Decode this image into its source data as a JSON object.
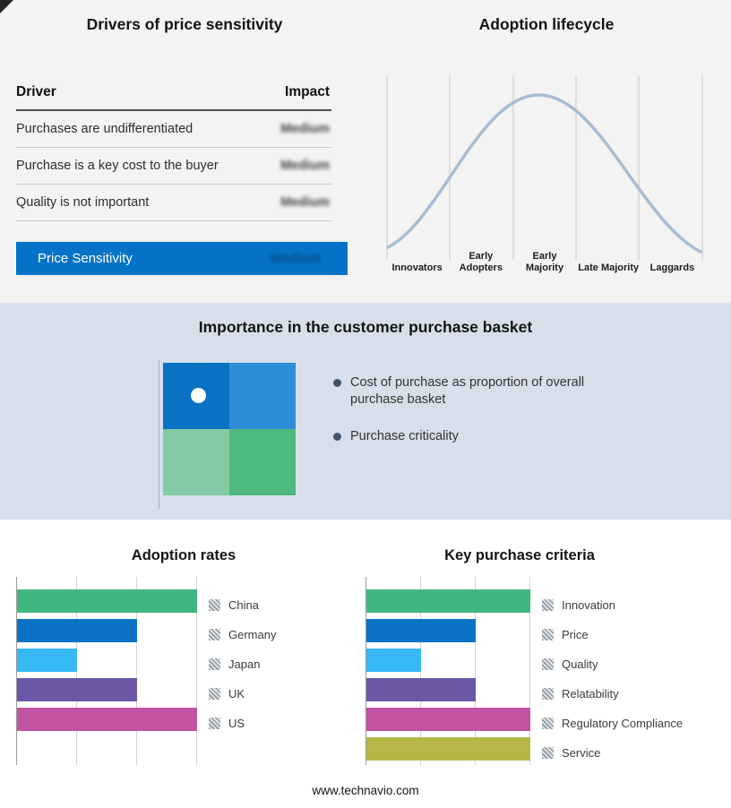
{
  "page": {
    "footer": "www.technavio.com"
  },
  "colors": {
    "accent_blue": "#0473c7",
    "band_background": "#d7e0ea",
    "curve": "#a8bdd3"
  },
  "price_sensitivity": {
    "title": "Drivers of price sensitivity",
    "columns": {
      "driver": "Driver",
      "impact": "Impact"
    },
    "rows": [
      {
        "driver": "Purchases are undifferentiated",
        "impact": "Medium"
      },
      {
        "driver": "Purchase is a key cost to the buyer",
        "impact": "Medium"
      },
      {
        "driver": "Quality is not important",
        "impact": "Medium"
      }
    ],
    "summary": {
      "label": "Price Sensitivity",
      "impact": "Medium"
    }
  },
  "adoption_lifecycle": {
    "title": "Adoption lifecycle",
    "stages": [
      "Innovators",
      "Early Adopters",
      "Early Majority",
      "Late Majority",
      "Laggards"
    ]
  },
  "purchase_basket": {
    "title": "Importance in the customer purchase basket",
    "bullets": [
      "Cost of purchase as proportion of overall purchase basket",
      "Purchase criticality"
    ],
    "matrix_colors": [
      "#0a72c5",
      "#2e8ed7",
      "#83cba4",
      "#4eb981"
    ]
  },
  "chart_data": [
    {
      "type": "line",
      "title": "Adoption lifecycle",
      "x": [
        "Innovators",
        "Early Adopters",
        "Early Majority",
        "Late Majority",
        "Laggards"
      ],
      "shape": "bell curve peaking at Early Majority",
      "grid": true,
      "legend_position": "none"
    },
    {
      "type": "bar",
      "orientation": "horizontal",
      "title": "Adoption rates",
      "categories": [
        "China",
        "Germany",
        "Japan",
        "UK",
        "US"
      ],
      "values": [
        3,
        2,
        1,
        2,
        3
      ],
      "xlim": [
        0,
        3
      ],
      "xlabel": "",
      "ylabel": "",
      "grid": true,
      "legend_position": "right",
      "colors": [
        "#3fb77e",
        "#0b72c6",
        "#36b9f5",
        "#6b57a5",
        "#c153a2"
      ]
    },
    {
      "type": "bar",
      "orientation": "horizontal",
      "title": "Key purchase criteria",
      "categories": [
        "Innovation",
        "Price",
        "Quality",
        "Relatability",
        "Regulatory Compliance",
        "Service"
      ],
      "values": [
        3,
        2,
        1,
        2,
        3,
        3
      ],
      "xlim": [
        0,
        3
      ],
      "xlabel": "",
      "ylabel": "",
      "grid": true,
      "legend_position": "right",
      "colors": [
        "#3fb77e",
        "#0b72c6",
        "#36b9f5",
        "#6b57a5",
        "#c153a2",
        "#b5b747"
      ]
    }
  ]
}
